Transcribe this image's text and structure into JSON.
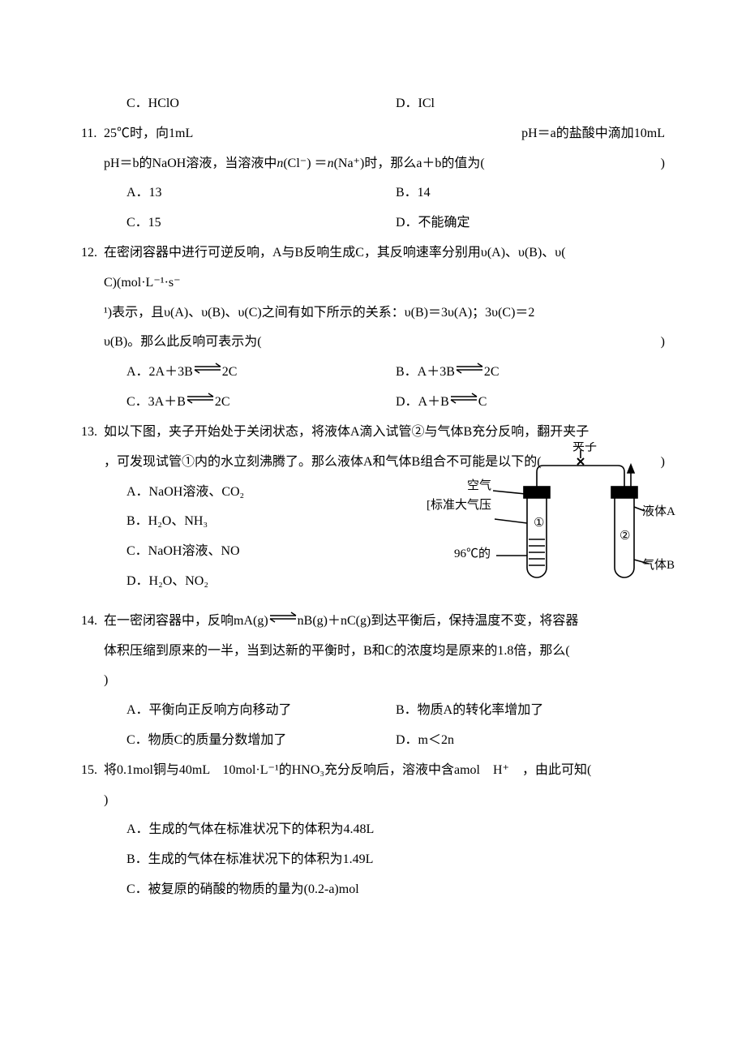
{
  "colors": {
    "text": "#000000",
    "bg": "#ffffff",
    "stroke": "#000000"
  },
  "font": {
    "family": "SimSun",
    "size_pt": 12,
    "line_height": 2.3
  },
  "q10": {
    "optC": "C．HClO",
    "optD": "D．ICl"
  },
  "q11": {
    "num": "11.",
    "stem_a": "25℃时，向1mL",
    "stem_b": "pH＝a的盐酸中滴加10mL",
    "line2_a": "pH＝b的NaOH溶液，当溶液中",
    "line2_formula_pre": "n",
    "line2_formula": "(Cl⁻) ＝",
    "line2_formula_pre2": "n",
    "line2_formula2": "(Na⁺)时，那么a＋b的值为(",
    "line2_end": ")",
    "optA": "A．13",
    "optB": "B．14",
    "optC": "C．15",
    "optD": "D．不能确定"
  },
  "q12": {
    "num": "12.",
    "stem": "在密闭容器中进行可逆反响，A与B反响生成C，其反响速率分别用υ(A)、υ(B)、υ(",
    "line2": "C)(mol·L⁻¹·s⁻",
    "line3": "¹)表示，且υ(A)、υ(B)、υ(C)之间有如下所示的关系：υ(B)＝3υ(A)；3υ(C)＝2",
    "line4_a": "υ(B)。那么此反响可表示为(",
    "line4_end": ")",
    "optA_pre": "A．2A＋3B",
    "optA_post": "2C",
    "optB_pre": "B．A＋3B",
    "optB_post": "2C",
    "optC_pre": "C．3A＋B",
    "optC_post": "2C",
    "optD_pre": "D．A＋B",
    "optD_post": "C"
  },
  "q13": {
    "num": "13.",
    "stem": "如以下图，夹子开始处于关闭状态，将液体A滴入试管②与气体B充分反响，翻开夹子",
    "line2_a": "，可发现试管①内的水立刻沸腾了。那么液体A和气体B组合不可能是以下的(",
    "line2_end": ")",
    "optA": "A．NaOH溶液、CO₂",
    "optB": "B．H₂O、NH₃",
    "optC": "C．NaOH溶液、NO",
    "optD": "D．H₂O、NO₂",
    "diagram": {
      "label_clip": "夹子",
      "label_air": "空气",
      "label_pressure": "[标准大气压",
      "label_temp": "96℃的",
      "label_tube1": "①",
      "label_tube2": "②",
      "label_liquidA": "液体A",
      "label_gasB": "气体B",
      "stroke": "#000000",
      "fill_water": "#ffffff",
      "line_width": 1.6
    }
  },
  "q14": {
    "num": "14.",
    "stem_a": "在一密闭容器中，反响mA(g)",
    "stem_b": "nB(g)＋nC(g)到达平衡后，保持温度不变，将容器",
    "line2": "体积压缩到原来的一半，当到达新的平衡时，B和C的浓度均是原来的1.8倍，那么(",
    "line3": ")",
    "optA": "A．平衡向正反响方向移动了",
    "optB": "B．物质A的转化率增加了",
    "optC": "C．物质C的质量分数增加了",
    "optD": "D．m＜2n"
  },
  "q15": {
    "num": "15.",
    "stem": "将0.1mol铜与40mL　10mol·L⁻¹的HNO₃充分反响后，溶液中含amol　H⁺　，由此可知(",
    "line2": ")",
    "optA": "A．生成的气体在标准状况下的体积为4.48L",
    "optB": "B．生成的气体在标准状况下的体积为1.49L",
    "optC": "C．被复原的硝酸的物质的量为(0.2-a)mol"
  },
  "eq_arrow_svg": {
    "w": 36,
    "h": 14,
    "stroke": "#000000",
    "lw": 1.4
  }
}
